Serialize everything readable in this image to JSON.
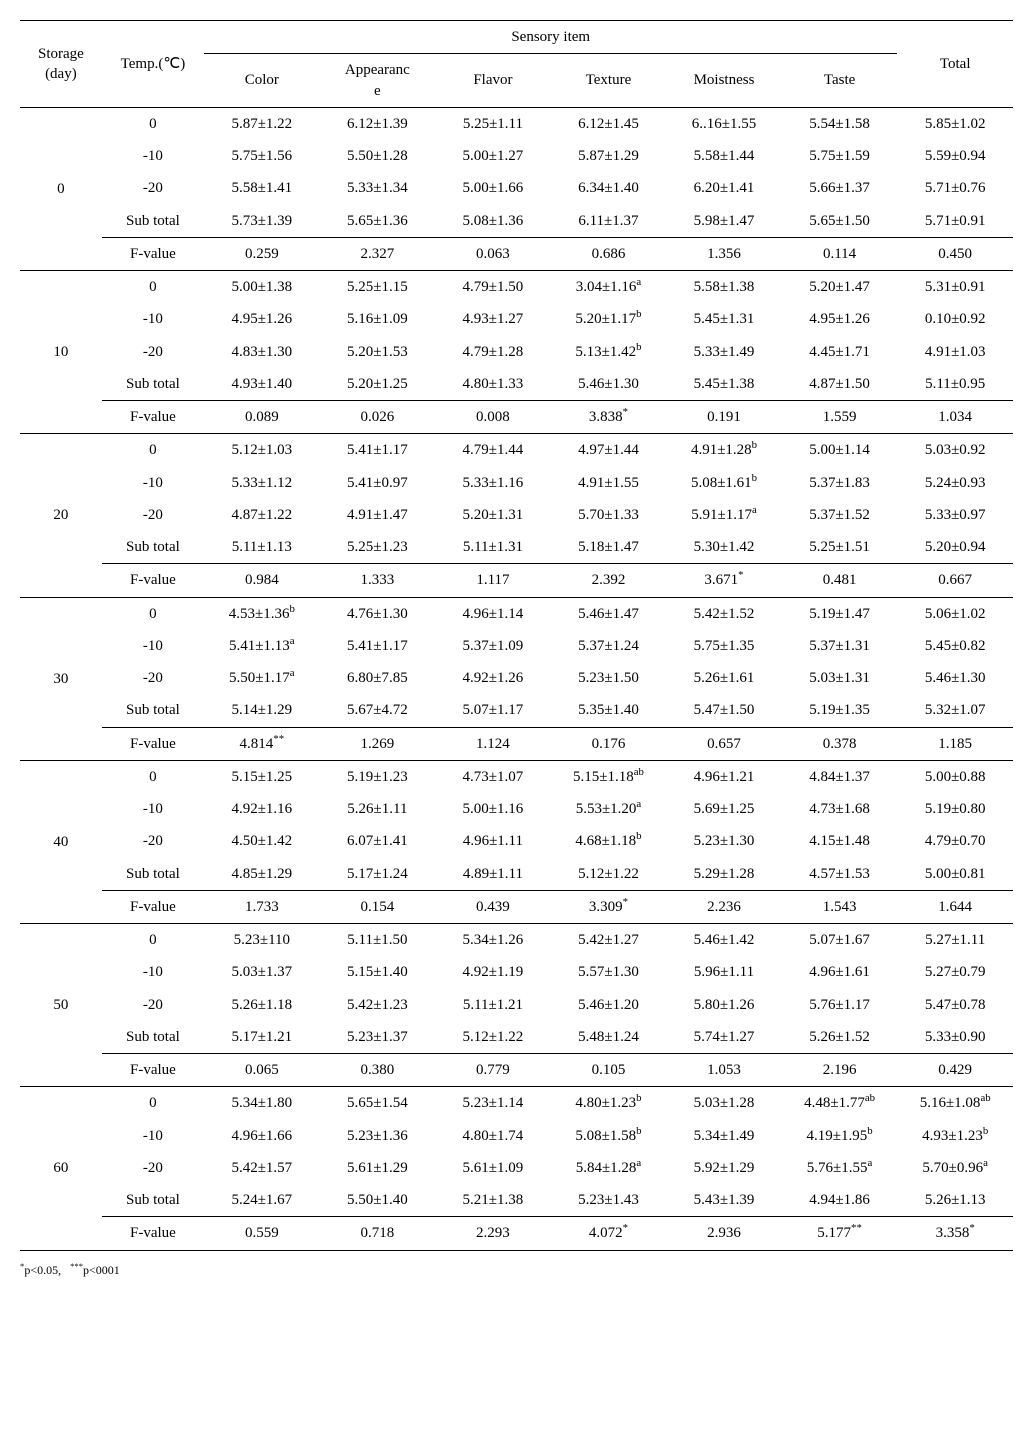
{
  "header": {
    "storage": "Storage\n(day)",
    "temp": "Temp.(℃)",
    "sensory": "Sensory item",
    "cols": [
      "Color",
      "Appearanc\ne",
      "Flavor",
      "Texture",
      "Moistness",
      "Taste"
    ],
    "total": "Total"
  },
  "rowLabels": [
    "0",
    "-10",
    "-20",
    "Sub total",
    "F-value"
  ],
  "groups": [
    {
      "day": "0",
      "rows": [
        [
          "5.87±1.22",
          "6.12±1.39",
          "5.25±1.11",
          "6.12±1.45",
          "6..16±1.55",
          "5.54±1.58",
          "5.85±1.02"
        ],
        [
          "5.75±1.56",
          "5.50±1.28",
          "5.00±1.27",
          "5.87±1.29",
          "5.58±1.44",
          "5.75±1.59",
          "5.59±0.94"
        ],
        [
          "5.58±1.41",
          "5.33±1.34",
          "5.00±1.66",
          "6.34±1.40",
          "6.20±1.41",
          "5.66±1.37",
          "5.71±0.76"
        ],
        [
          "5.73±1.39",
          "5.65±1.36",
          "5.08±1.36",
          "6.11±1.37",
          "5.98±1.47",
          "5.65±1.50",
          "5.71±0.91"
        ],
        [
          "0.259",
          "2.327",
          "0.063",
          "0.686",
          "1.356",
          "0.114",
          "0.450"
        ]
      ]
    },
    {
      "day": "10",
      "rows": [
        [
          "5.00±1.38",
          "5.25±1.15",
          "4.79±1.50",
          "3.04±1.16<sup>a</sup>",
          "5.58±1.38",
          "5.20±1.47",
          "5.31±0.91"
        ],
        [
          "4.95±1.26",
          "5.16±1.09",
          "4.93±1.27",
          "5.20±1.17<sup>b</sup>",
          "5.45±1.31",
          "4.95±1.26",
          "0.10±0.92"
        ],
        [
          "4.83±1.30",
          "5.20±1.53",
          "4.79±1.28",
          "5.13±1.42<sup>b</sup>",
          "5.33±1.49",
          "4.45±1.71",
          "4.91±1.03"
        ],
        [
          "4.93±1.40",
          "5.20±1.25",
          "4.80±1.33",
          "5.46±1.30",
          "5.45±1.38",
          "4.87±1.50",
          "5.11±0.95"
        ],
        [
          "0.089",
          "0.026",
          "0.008",
          "3.838<sup>*</sup>",
          "0.191",
          "1.559",
          "1.034"
        ]
      ]
    },
    {
      "day": "20",
      "rows": [
        [
          "5.12±1.03",
          "5.41±1.17",
          "4.79±1.44",
          "4.97±1.44",
          "4.91±1.28<sup>b</sup>",
          "5.00±1.14",
          "5.03±0.92"
        ],
        [
          "5.33±1.12",
          "5.41±0.97",
          "5.33±1.16",
          "4.91±1.55",
          "5.08±1.61<sup>b</sup>",
          "5.37±1.83",
          "5.24±0.93"
        ],
        [
          "4.87±1.22",
          "4.91±1.47",
          "5.20±1.31",
          "5.70±1.33",
          "5.91±1.17<sup>a</sup>",
          "5.37±1.52",
          "5.33±0.97"
        ],
        [
          "5.11±1.13",
          "5.25±1.23",
          "5.11±1.31",
          "5.18±1.47",
          "5.30±1.42",
          "5.25±1.51",
          "5.20±0.94"
        ],
        [
          "0.984",
          "1.333",
          "1.117",
          "2.392",
          "3.671<sup>*</sup>",
          "0.481",
          "0.667"
        ]
      ]
    },
    {
      "day": "30",
      "rows": [
        [
          "4.53±1.36<sup>b</sup>",
          "4.76±1.30",
          "4.96±1.14",
          "5.46±1.47",
          "5.42±1.52",
          "5.19±1.47",
          "5.06±1.02"
        ],
        [
          "5.41±1.13<sup>a</sup>",
          "5.41±1.17",
          "5.37±1.09",
          "5.37±1.24",
          "5.75±1.35",
          "5.37±1.31",
          "5.45±0.82"
        ],
        [
          "5.50±1.17<sup>a</sup>",
          "6.80±7.85",
          "4.92±1.26",
          "5.23±1.50",
          "5.26±1.61",
          "5.03±1.31",
          "5.46±1.30"
        ],
        [
          "5.14±1.29",
          "5.67±4.72",
          "5.07±1.17",
          "5.35±1.40",
          "5.47±1.50",
          "5.19±1.35",
          "5.32±1.07"
        ],
        [
          "4.814<sup>**</sup>",
          "1.269",
          "1.124",
          "0.176",
          "0.657",
          "0.378",
          "1.185"
        ]
      ]
    },
    {
      "day": "40",
      "rows": [
        [
          "5.15±1.25",
          "5.19±1.23",
          "4.73±1.07",
          "5.15±1.18<sup>ab</sup>",
          "4.96±1.21",
          "4.84±1.37",
          "5.00±0.88"
        ],
        [
          "4.92±1.16",
          "5.26±1.11",
          "5.00±1.16",
          "5.53±1.20<sup>a</sup>",
          "5.69±1.25",
          "4.73±1.68",
          "5.19±0.80"
        ],
        [
          "4.50±1.42",
          "6.07±1.41",
          "4.96±1.11",
          "4.68±1.18<sup>b</sup>",
          "5.23±1.30",
          "4.15±1.48",
          "4.79±0.70"
        ],
        [
          "4.85±1.29",
          "5.17±1.24",
          "4.89±1.11",
          "5.12±1.22",
          "5.29±1.28",
          "4.57±1.53",
          "5.00±0.81"
        ],
        [
          "1.733",
          "0.154",
          "0.439",
          "3.309<sup>*</sup>",
          "2.236",
          "1.543",
          "1.644"
        ]
      ]
    },
    {
      "day": "50",
      "rows": [
        [
          "5.23±110",
          "5.11±1.50",
          "5.34±1.26",
          "5.42±1.27",
          "5.46±1.42",
          "5.07±1.67",
          "5.27±1.11"
        ],
        [
          "5.03±1.37",
          "5.15±1.40",
          "4.92±1.19",
          "5.57±1.30",
          "5.96±1.11",
          "4.96±1.61",
          "5.27±0.79"
        ],
        [
          "5.26±1.18",
          "5.42±1.23",
          "5.11±1.21",
          "5.46±1.20",
          "5.80±1.26",
          "5.76±1.17",
          "5.47±0.78"
        ],
        [
          "5.17±1.21",
          "5.23±1.37",
          "5.12±1.22",
          "5.48±1.24",
          "5.74±1.27",
          "5.26±1.52",
          "5.33±0.90"
        ],
        [
          "0.065",
          "0.380",
          "0.779",
          "0.105",
          "1.053",
          "2.196",
          "0.429"
        ]
      ]
    },
    {
      "day": "60",
      "rows": [
        [
          "5.34±1.80",
          "5.65±1.54",
          "5.23±1.14",
          "4.80±1.23<sup>b</sup>",
          "5.03±1.28",
          "4.48±1.77<sup>ab</sup>",
          "5.16±1.08<sup>ab</sup>"
        ],
        [
          "4.96±1.66",
          "5.23±1.36",
          "4.80±1.74",
          "5.08±1.58<sup>b</sup>",
          "5.34±1.49",
          "4.19±1.95<sup>b</sup>",
          "4.93±1.23<sup>b</sup>"
        ],
        [
          "5.42±1.57",
          "5.61±1.29",
          "5.61±1.09",
          "5.84±1.28<sup>a</sup>",
          "5.92±1.29",
          "5.76±1.55<sup>a</sup>",
          "5.70±0.96<sup>a</sup>"
        ],
        [
          "5.24±1.67",
          "5.50±1.40",
          "5.21±1.38",
          "5.23±1.43",
          "5.43±1.39",
          "4.94±1.86",
          "5.26±1.13"
        ],
        [
          "0.559",
          "0.718",
          "2.293",
          "4.072<sup>*</sup>",
          "2.936",
          "5.177<sup>**</sup>",
          "3.358<sup>*</sup>"
        ]
      ]
    }
  ],
  "footnote": "<sup>*</sup>p<0.05,&nbsp;&nbsp;&nbsp;<sup>***</sup>p<0001"
}
